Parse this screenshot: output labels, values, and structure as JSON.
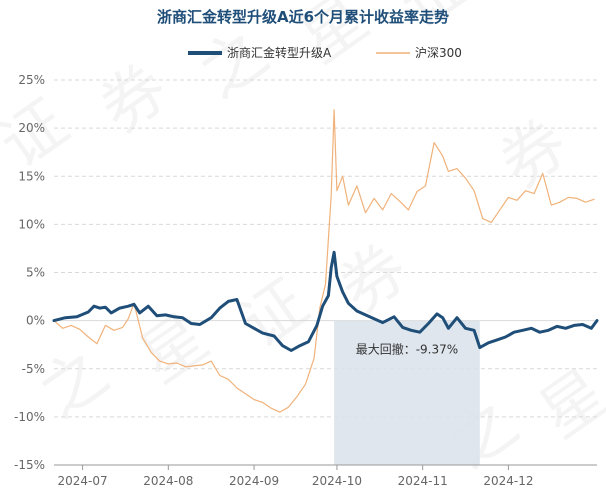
{
  "colors": {
    "fund": "#1f4e79",
    "index": "#f0b27a",
    "drawdown_fill": "#d9e2ea",
    "grid": "#d9d9d9"
  },
  "chart_data": {
    "type": "line",
    "title": "浙商汇金转型升级A近6个月累计收益率走势",
    "legend_position": "top",
    "grid": true,
    "ylim": [
      -15,
      25
    ],
    "yticks": [
      -15,
      -10,
      -5,
      0,
      5,
      10,
      15,
      20,
      25
    ],
    "ytick_labels": [
      "-15%",
      "-10%",
      "-5%",
      "0%",
      "5%",
      "10%",
      "15%",
      "20%",
      "25%"
    ],
    "xlim": [
      "2024-06-24",
      "2024-12-31"
    ],
    "xticks": [
      "2024-07-04",
      "2024-08-03",
      "2024-09-02",
      "2024-10-01",
      "2024-10-31",
      "2024-11-30"
    ],
    "xtick_labels": [
      "2024-07",
      "2024-08",
      "2024-09",
      "2024-10",
      "2024-11",
      "2024-12"
    ],
    "annotation": {
      "text": "最大回撤：-9.37%",
      "start": "2024-09-30",
      "end": "2024-11-20",
      "value_top": 0,
      "value_bottom": -15
    },
    "series": [
      {
        "name": "浙商汇金转型升级A",
        "x": [
          "2024-06-24",
          "2024-06-28",
          "2024-07-02",
          "2024-07-06",
          "2024-07-08",
          "2024-07-10",
          "2024-07-12",
          "2024-07-14",
          "2024-07-17",
          "2024-07-20",
          "2024-07-22",
          "2024-07-24",
          "2024-07-27",
          "2024-07-30",
          "2024-08-02",
          "2024-08-05",
          "2024-08-08",
          "2024-08-11",
          "2024-08-14",
          "2024-08-18",
          "2024-08-21",
          "2024-08-24",
          "2024-08-27",
          "2024-08-30",
          "2024-09-02",
          "2024-09-05",
          "2024-09-09",
          "2024-09-12",
          "2024-09-15",
          "2024-09-18",
          "2024-09-21",
          "2024-09-24",
          "2024-09-26",
          "2024-09-28",
          "2024-09-29",
          "2024-09-30",
          "2024-10-01",
          "2024-10-03",
          "2024-10-05",
          "2024-10-08",
          "2024-10-11",
          "2024-10-14",
          "2024-10-17",
          "2024-10-21",
          "2024-10-24",
          "2024-10-27",
          "2024-10-30",
          "2024-11-02",
          "2024-11-05",
          "2024-11-07",
          "2024-11-09",
          "2024-11-12",
          "2024-11-15",
          "2024-11-18",
          "2024-11-20",
          "2024-11-23",
          "2024-11-26",
          "2024-11-29",
          "2024-12-02",
          "2024-12-05",
          "2024-12-08",
          "2024-12-11",
          "2024-12-14",
          "2024-12-17",
          "2024-12-20",
          "2024-12-23",
          "2024-12-26",
          "2024-12-29",
          "2024-12-31"
        ],
        "values": [
          0.0,
          0.3,
          0.4,
          0.9,
          1.5,
          1.3,
          1.4,
          0.8,
          1.3,
          1.5,
          1.7,
          0.8,
          1.5,
          0.5,
          0.6,
          0.4,
          0.3,
          -0.3,
          -0.4,
          0.3,
          1.3,
          2.0,
          2.2,
          -0.3,
          -0.8,
          -1.3,
          -1.6,
          -2.6,
          -3.1,
          -2.6,
          -2.2,
          -0.5,
          1.5,
          2.6,
          5.5,
          7.1,
          4.6,
          3.0,
          1.8,
          1.0,
          0.6,
          0.2,
          -0.2,
          0.4,
          -0.7,
          -1.0,
          -1.2,
          -0.3,
          0.7,
          0.3,
          -0.8,
          0.3,
          -0.8,
          -1.0,
          -2.8,
          -2.3,
          -2.0,
          -1.7,
          -1.2,
          -1.0,
          -0.8,
          -1.2,
          -1.0,
          -0.6,
          -0.8,
          -0.5,
          -0.4,
          -0.8,
          0.0
        ]
      },
      {
        "name": "沪深300",
        "x": [
          "2024-06-24",
          "2024-06-27",
          "2024-06-30",
          "2024-07-03",
          "2024-07-06",
          "2024-07-09",
          "2024-07-12",
          "2024-07-15",
          "2024-07-18",
          "2024-07-20",
          "2024-07-22",
          "2024-07-25",
          "2024-07-28",
          "2024-07-31",
          "2024-08-03",
          "2024-08-06",
          "2024-08-09",
          "2024-08-12",
          "2024-08-15",
          "2024-08-18",
          "2024-08-21",
          "2024-08-24",
          "2024-08-27",
          "2024-08-30",
          "2024-09-02",
          "2024-09-05",
          "2024-09-08",
          "2024-09-11",
          "2024-09-14",
          "2024-09-17",
          "2024-09-20",
          "2024-09-23",
          "2024-09-25",
          "2024-09-27",
          "2024-09-29",
          "2024-09-30",
          "2024-10-01",
          "2024-10-03",
          "2024-10-05",
          "2024-10-08",
          "2024-10-11",
          "2024-10-14",
          "2024-10-17",
          "2024-10-20",
          "2024-10-23",
          "2024-10-26",
          "2024-10-29",
          "2024-11-01",
          "2024-11-04",
          "2024-11-07",
          "2024-11-09",
          "2024-11-12",
          "2024-11-15",
          "2024-11-18",
          "2024-11-21",
          "2024-11-24",
          "2024-11-27",
          "2024-11-30",
          "2024-12-03",
          "2024-12-06",
          "2024-12-09",
          "2024-12-12",
          "2024-12-15",
          "2024-12-18",
          "2024-12-21",
          "2024-12-24",
          "2024-12-27",
          "2024-12-30"
        ],
        "values": [
          0.0,
          -0.8,
          -0.5,
          -0.9,
          -1.7,
          -2.4,
          -0.5,
          -1.0,
          -0.7,
          0.2,
          1.8,
          -1.8,
          -3.3,
          -4.2,
          -4.5,
          -4.4,
          -4.8,
          -4.7,
          -4.6,
          -4.2,
          -5.7,
          -6.1,
          -7.0,
          -7.6,
          -8.2,
          -8.5,
          -9.1,
          -9.5,
          -9.0,
          -7.9,
          -6.6,
          -3.9,
          1.3,
          3.8,
          13.0,
          21.9,
          13.5,
          15.0,
          12.0,
          14.0,
          11.2,
          12.7,
          11.5,
          13.2,
          12.4,
          11.5,
          13.4,
          14.0,
          18.5,
          17.1,
          15.5,
          15.8,
          14.8,
          13.5,
          10.6,
          10.2,
          11.5,
          12.8,
          12.5,
          13.5,
          13.2,
          15.3,
          12.0,
          12.3,
          12.8,
          12.7,
          12.3,
          12.6
        ]
      }
    ]
  },
  "watermark": "证券之星"
}
